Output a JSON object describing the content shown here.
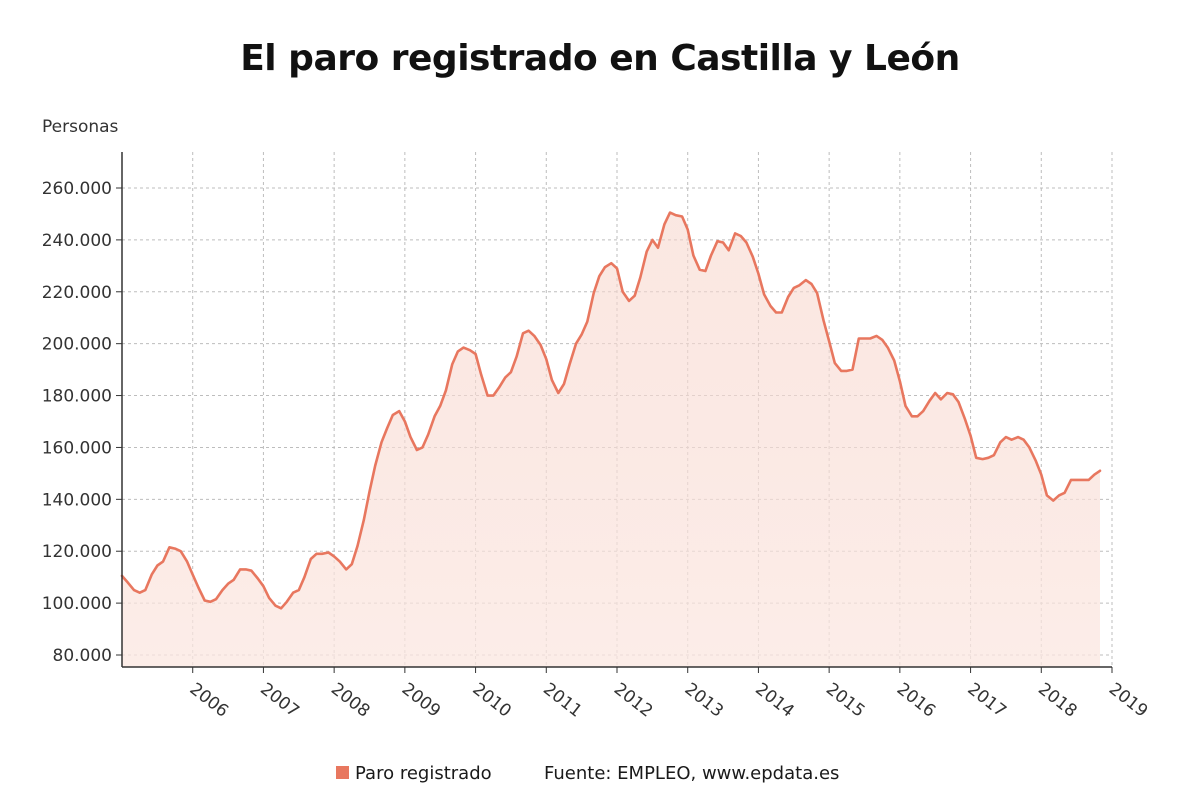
{
  "chart_data": {
    "type": "area",
    "title": "El paro registrado en Castilla y León",
    "ylabel": "Personas",
    "xlabel": "",
    "ylim": [
      75000,
      270000
    ],
    "xlim": [
      2005.0,
      2019.0
    ],
    "yticks": [
      80000,
      100000,
      120000,
      140000,
      160000,
      180000,
      200000,
      220000,
      240000,
      260000
    ],
    "ytick_labels": [
      "80.000",
      "100.000",
      "120.000",
      "140.000",
      "160.000",
      "180.000",
      "200.000",
      "220.000",
      "240.000",
      "260.000"
    ],
    "xticks": [
      2006,
      2007,
      2008,
      2009,
      2010,
      2011,
      2012,
      2013,
      2014,
      2015,
      2016,
      2017,
      2018,
      2019
    ],
    "xtick_labels": [
      "2006",
      "2007",
      "2008",
      "2009",
      "2010",
      "2011",
      "2012",
      "2013",
      "2014",
      "2015",
      "2016",
      "2017",
      "2018",
      "2019"
    ],
    "grid": true,
    "legend_placement": "bottom",
    "series": [
      {
        "name": "Paro registrado",
        "color": "#e8775f",
        "points": [
          [
            2005.0,
            110500
          ],
          [
            2005.08,
            108000
          ],
          [
            2005.17,
            105000
          ],
          [
            2005.25,
            104000
          ],
          [
            2005.33,
            105000
          ],
          [
            2005.42,
            111000
          ],
          [
            2005.5,
            114500
          ],
          [
            2005.58,
            116000
          ],
          [
            2005.67,
            121500
          ],
          [
            2005.75,
            121000
          ],
          [
            2005.83,
            120000
          ],
          [
            2005.92,
            116000
          ],
          [
            2006.0,
            111000
          ],
          [
            2006.08,
            106000
          ],
          [
            2006.17,
            101000
          ],
          [
            2006.25,
            100500
          ],
          [
            2006.33,
            101500
          ],
          [
            2006.42,
            105000
          ],
          [
            2006.5,
            107500
          ],
          [
            2006.58,
            109000
          ],
          [
            2006.67,
            113000
          ],
          [
            2006.75,
            113000
          ],
          [
            2006.83,
            112500
          ],
          [
            2006.92,
            109500
          ],
          [
            2007.0,
            106500
          ],
          [
            2007.08,
            102000
          ],
          [
            2007.17,
            99000
          ],
          [
            2007.25,
            98000
          ],
          [
            2007.33,
            100500
          ],
          [
            2007.42,
            104000
          ],
          [
            2007.5,
            105000
          ],
          [
            2007.58,
            110000
          ],
          [
            2007.67,
            117000
          ],
          [
            2007.75,
            119000
          ],
          [
            2007.83,
            119000
          ],
          [
            2007.92,
            119500
          ],
          [
            2008.0,
            118000
          ],
          [
            2008.08,
            116000
          ],
          [
            2008.17,
            113000
          ],
          [
            2008.25,
            115000
          ],
          [
            2008.33,
            122000
          ],
          [
            2008.42,
            132000
          ],
          [
            2008.5,
            143000
          ],
          [
            2008.58,
            153000
          ],
          [
            2008.67,
            162000
          ],
          [
            2008.75,
            167500
          ],
          [
            2008.83,
            172500
          ],
          [
            2008.92,
            174000
          ],
          [
            2009.0,
            170000
          ],
          [
            2009.08,
            164000
          ],
          [
            2009.17,
            159000
          ],
          [
            2009.25,
            160000
          ],
          [
            2009.33,
            165000
          ],
          [
            2009.42,
            172000
          ],
          [
            2009.5,
            176000
          ],
          [
            2009.58,
            182000
          ],
          [
            2009.67,
            192000
          ],
          [
            2009.75,
            197000
          ],
          [
            2009.83,
            198500
          ],
          [
            2009.92,
            197500
          ],
          [
            2010.0,
            196000
          ],
          [
            2010.08,
            188000
          ],
          [
            2010.17,
            180000
          ],
          [
            2010.25,
            180000
          ],
          [
            2010.33,
            183000
          ],
          [
            2010.42,
            187000
          ],
          [
            2010.5,
            189000
          ],
          [
            2010.58,
            195000
          ],
          [
            2010.67,
            204000
          ],
          [
            2010.75,
            205000
          ],
          [
            2010.83,
            203000
          ],
          [
            2010.92,
            199500
          ],
          [
            2011.0,
            194000
          ],
          [
            2011.08,
            186000
          ],
          [
            2011.17,
            181000
          ],
          [
            2011.25,
            184500
          ],
          [
            2011.33,
            192000
          ],
          [
            2011.42,
            200000
          ],
          [
            2011.5,
            203500
          ],
          [
            2011.58,
            208500
          ],
          [
            2011.67,
            219500
          ],
          [
            2011.75,
            226000
          ],
          [
            2011.83,
            229500
          ],
          [
            2011.92,
            231000
          ],
          [
            2012.0,
            229000
          ],
          [
            2012.08,
            220000
          ],
          [
            2012.17,
            216500
          ],
          [
            2012.25,
            218500
          ],
          [
            2012.33,
            225500
          ],
          [
            2012.42,
            235500
          ],
          [
            2012.5,
            240000
          ],
          [
            2012.58,
            237000
          ],
          [
            2012.67,
            246000
          ],
          [
            2012.75,
            250500
          ],
          [
            2012.83,
            249500
          ],
          [
            2012.92,
            249000
          ],
          [
            2013.0,
            244000
          ],
          [
            2013.08,
            234000
          ],
          [
            2013.17,
            228500
          ],
          [
            2013.25,
            228000
          ],
          [
            2013.33,
            234000
          ],
          [
            2013.42,
            239500
          ],
          [
            2013.5,
            239000
          ],
          [
            2013.58,
            236000
          ],
          [
            2013.67,
            242500
          ],
          [
            2013.75,
            241500
          ],
          [
            2013.83,
            239000
          ],
          [
            2013.92,
            233500
          ],
          [
            2014.0,
            227000
          ],
          [
            2014.08,
            219000
          ],
          [
            2014.17,
            214500
          ],
          [
            2014.25,
            212000
          ],
          [
            2014.33,
            212000
          ],
          [
            2014.42,
            218000
          ],
          [
            2014.5,
            221500
          ],
          [
            2014.58,
            222500
          ],
          [
            2014.67,
            224500
          ],
          [
            2014.75,
            223000
          ],
          [
            2014.83,
            219500
          ],
          [
            2014.92,
            209000
          ],
          [
            2015.0,
            201000
          ],
          [
            2015.08,
            192500
          ],
          [
            2015.17,
            189500
          ],
          [
            2015.25,
            189500
          ],
          [
            2015.33,
            190000
          ],
          [
            2015.42,
            202000
          ],
          [
            2015.5,
            202000
          ],
          [
            2015.58,
            202000
          ],
          [
            2015.67,
            203000
          ],
          [
            2015.75,
            201500
          ],
          [
            2015.83,
            198500
          ],
          [
            2015.92,
            193500
          ],
          [
            2016.0,
            185500
          ],
          [
            2016.08,
            176000
          ],
          [
            2016.17,
            172000
          ],
          [
            2016.25,
            172000
          ],
          [
            2016.33,
            174000
          ],
          [
            2016.42,
            178000
          ],
          [
            2016.5,
            181000
          ],
          [
            2016.58,
            178500
          ],
          [
            2016.67,
            181000
          ],
          [
            2016.75,
            180500
          ],
          [
            2016.83,
            177500
          ],
          [
            2016.92,
            171000
          ],
          [
            2017.0,
            164500
          ],
          [
            2017.08,
            156000
          ],
          [
            2017.17,
            155500
          ],
          [
            2017.25,
            156000
          ],
          [
            2017.33,
            157000
          ],
          [
            2017.42,
            162000
          ],
          [
            2017.5,
            164000
          ],
          [
            2017.58,
            163000
          ],
          [
            2017.67,
            164000
          ],
          [
            2017.75,
            163000
          ],
          [
            2017.83,
            160000
          ],
          [
            2017.92,
            155000
          ],
          [
            2018.0,
            149500
          ],
          [
            2018.08,
            141500
          ],
          [
            2018.17,
            139500
          ],
          [
            2018.25,
            141500
          ],
          [
            2018.33,
            142500
          ],
          [
            2018.42,
            147500
          ],
          [
            2018.5,
            147500
          ],
          [
            2018.58,
            147500
          ],
          [
            2018.67,
            147500
          ],
          [
            2018.75,
            149500
          ],
          [
            2018.83,
            151000
          ]
        ]
      }
    ],
    "source": "Fuente: EMPLEO, www.epdata.es"
  }
}
